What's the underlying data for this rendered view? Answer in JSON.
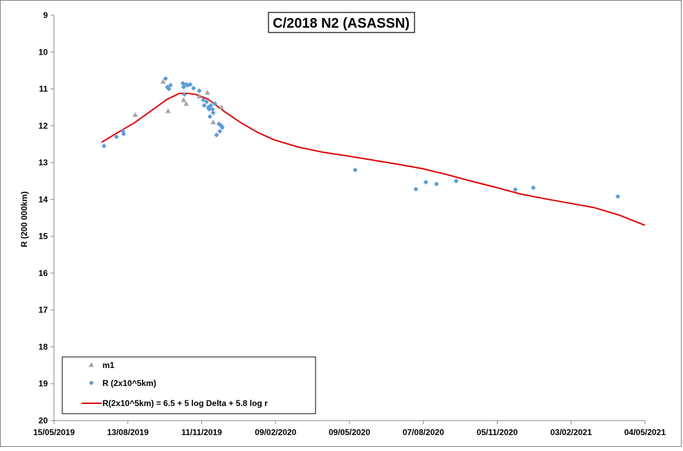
{
  "chart_data": {
    "type": "scatter",
    "title": "C/2018 N2 (ASASSN)",
    "xlabel": "",
    "ylabel": "R (200 000km)",
    "x_type": "date",
    "xlim": [
      "2019-05-15",
      "2021-05-04"
    ],
    "ylim": [
      9,
      20
    ],
    "y_inverted": true,
    "grid": false,
    "x_ticks": [
      "15/05/2019",
      "13/08/2019",
      "11/11/2019",
      "09/02/2020",
      "09/05/2020",
      "07/08/2020",
      "05/11/2020",
      "03/02/2021",
      "04/05/2021"
    ],
    "y_ticks": [
      "9",
      "10",
      "11",
      "12",
      "13",
      "14",
      "15",
      "16",
      "17",
      "18",
      "19",
      "20"
    ],
    "legend": {
      "placement": "bottom-left"
    },
    "series": [
      {
        "name": "m1",
        "kind": "scatter",
        "marker": "triangle",
        "color": "#a5a5a5",
        "points": [
          [
            "2019-08-22",
            11.7
          ],
          [
            "2019-09-25",
            10.8
          ],
          [
            "2019-10-01",
            11.6
          ],
          [
            "2019-10-20",
            11.3
          ],
          [
            "2019-10-23",
            11.4
          ],
          [
            "2019-11-08",
            11.2
          ],
          [
            "2019-11-18",
            11.1
          ],
          [
            "2019-11-25",
            11.9
          ],
          [
            "2019-12-05",
            11.5
          ]
        ]
      },
      {
        "name": "R (2x10^5km)",
        "kind": "scatter",
        "marker": "diamond",
        "color": "#5b9bd5",
        "points": [
          [
            "2019-07-15",
            12.55
          ],
          [
            "2019-07-30",
            12.3
          ],
          [
            "2019-08-07",
            12.15
          ],
          [
            "2019-08-08",
            12.22
          ],
          [
            "2019-09-28",
            10.72
          ],
          [
            "2019-09-30",
            10.95
          ],
          [
            "2019-10-02",
            11.0
          ],
          [
            "2019-10-04",
            10.9
          ],
          [
            "2019-10-19",
            10.85
          ],
          [
            "2019-10-20",
            10.95
          ],
          [
            "2019-10-21",
            11.15
          ],
          [
            "2019-10-23",
            10.88
          ],
          [
            "2019-10-25",
            10.9
          ],
          [
            "2019-10-28",
            10.88
          ],
          [
            "2019-11-01",
            10.98
          ],
          [
            "2019-11-08",
            11.05
          ],
          [
            "2019-11-13",
            11.3
          ],
          [
            "2019-11-14",
            11.45
          ],
          [
            "2019-11-17",
            11.35
          ],
          [
            "2019-11-19",
            11.5
          ],
          [
            "2019-11-20",
            11.55
          ],
          [
            "2019-11-21",
            11.75
          ],
          [
            "2019-11-22",
            11.45
          ],
          [
            "2019-11-24",
            11.55
          ],
          [
            "2019-11-25",
            11.65
          ],
          [
            "2019-11-27",
            11.4
          ],
          [
            "2019-11-29",
            12.25
          ],
          [
            "2019-12-02",
            11.95
          ],
          [
            "2019-12-03",
            12.15
          ],
          [
            "2019-12-05",
            12.0
          ],
          [
            "2019-12-06",
            12.05
          ],
          [
            "2020-05-16",
            13.2
          ],
          [
            "2020-07-29",
            13.72
          ],
          [
            "2020-08-10",
            13.53
          ],
          [
            "2020-08-23",
            13.58
          ],
          [
            "2020-09-16",
            13.5
          ],
          [
            "2020-11-27",
            13.73
          ],
          [
            "2020-12-19",
            13.68
          ],
          [
            "2021-04-01",
            13.92
          ]
        ]
      },
      {
        "name": "R(2x10^5km) = 6.5 + 5 log Delta + 5.8 log r",
        "kind": "line",
        "color": "#e00000",
        "points": [
          [
            "2019-07-12",
            12.45
          ],
          [
            "2019-08-01",
            12.18
          ],
          [
            "2019-08-21",
            11.92
          ],
          [
            "2019-09-10",
            11.6
          ],
          [
            "2019-09-30",
            11.28
          ],
          [
            "2019-10-15",
            11.12
          ],
          [
            "2019-10-25",
            11.12
          ],
          [
            "2019-11-04",
            11.15
          ],
          [
            "2019-11-19",
            11.28
          ],
          [
            "2019-12-09",
            11.62
          ],
          [
            "2019-12-29",
            11.92
          ],
          [
            "2020-01-18",
            12.18
          ],
          [
            "2020-02-07",
            12.38
          ],
          [
            "2020-03-08",
            12.58
          ],
          [
            "2020-04-07",
            12.72
          ],
          [
            "2020-05-07",
            12.82
          ],
          [
            "2020-06-06",
            12.93
          ],
          [
            "2020-07-06",
            13.04
          ],
          [
            "2020-08-05",
            13.16
          ],
          [
            "2020-09-04",
            13.32
          ],
          [
            "2020-10-04",
            13.5
          ],
          [
            "2020-11-03",
            13.67
          ],
          [
            "2020-12-03",
            13.85
          ],
          [
            "2021-01-02",
            13.98
          ],
          [
            "2021-02-01",
            14.1
          ],
          [
            "2021-03-03",
            14.22
          ],
          [
            "2021-04-02",
            14.42
          ],
          [
            "2021-05-04",
            14.7
          ]
        ]
      }
    ]
  }
}
